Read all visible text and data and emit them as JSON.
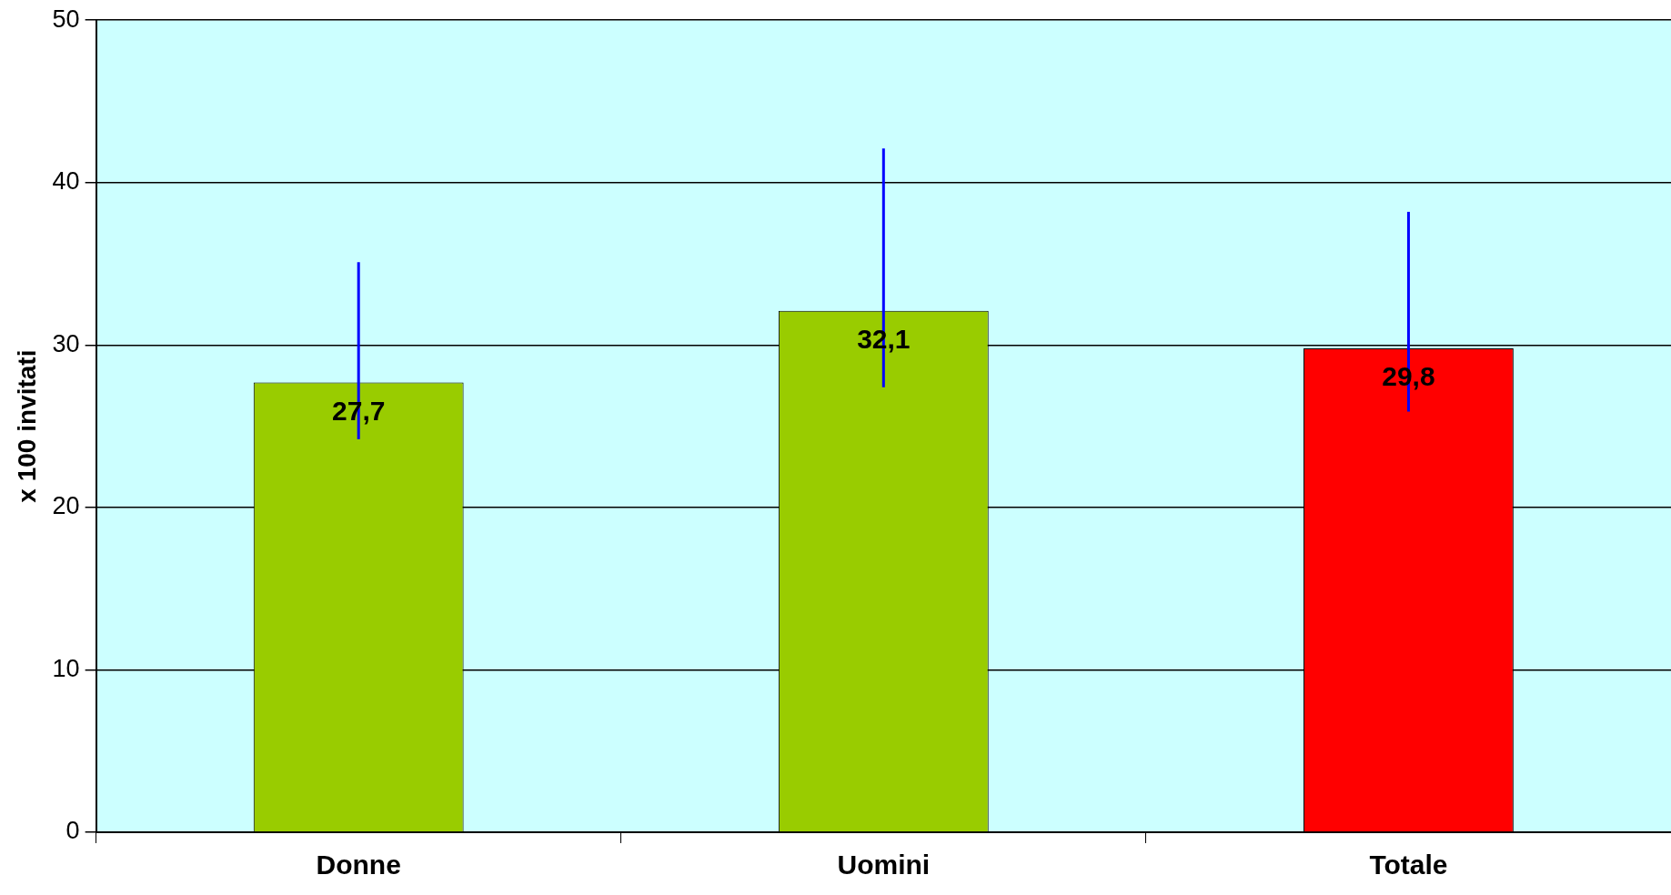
{
  "chart_data": {
    "type": "bar",
    "ylabel": "x 100 invitati",
    "categories": [
      "Donne",
      "Uomini",
      "Totale"
    ],
    "values": [
      27.7,
      32.1,
      29.8
    ],
    "colors": [
      "#99cc00",
      "#99cc00",
      "#ff0000"
    ],
    "errors": [
      [
        24.2,
        35.1
      ],
      [
        27.4,
        42.1
      ],
      [
        25.9,
        38.2
      ]
    ],
    "value_labels": [
      "27,7",
      "32,1",
      "29,8"
    ],
    "ylim": [
      0,
      50
    ],
    "yticks": [
      0,
      10,
      20,
      30,
      40,
      50
    ],
    "grid": "y",
    "legend": false
  }
}
